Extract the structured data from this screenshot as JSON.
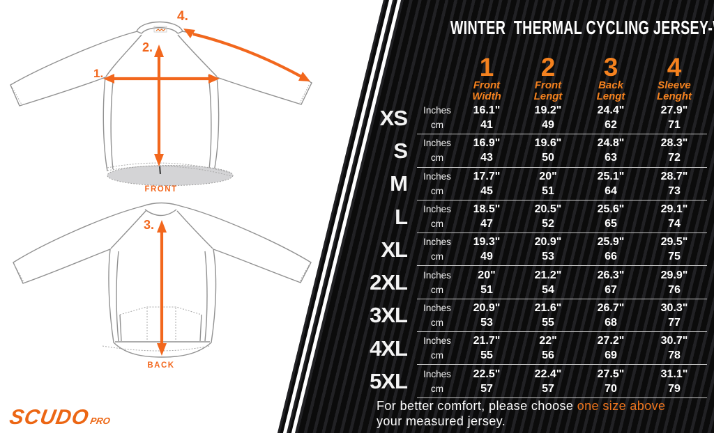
{
  "colors": {
    "accent": "#f2671d",
    "accent2": "#f0761e",
    "header_orange": "#f5821f",
    "logo_orange": "#ec6614",
    "panel_bg": "#0c0c0c",
    "stripe_light": "#212124",
    "separator": "#cdcdcd",
    "hem_gray": "#d4d4d6"
  },
  "diagram": {
    "front_label": "FRONT",
    "back_label": "BACK",
    "markers": {
      "m1": "1.",
      "m2": "2.",
      "m3": "3.",
      "m4": "4."
    },
    "brand": {
      "name": "SCUDO",
      "suffix": "PRO"
    }
  },
  "panel": {
    "title": "WINTER  THERMAL CYCLING JERSEY-WOMAN",
    "columns": [
      {
        "num": "1",
        "label_line1": "Front",
        "label_line2": "Width"
      },
      {
        "num": "2",
        "label_line1": "Front",
        "label_line2": "Lengt"
      },
      {
        "num": "3",
        "label_line1": "Back",
        "label_line2": "Lengt"
      },
      {
        "num": "4",
        "label_line1": "Sleeve",
        "label_line2": "Lenght"
      }
    ],
    "units": [
      "Inches",
      "cm"
    ],
    "rows": [
      {
        "size": "XS",
        "inches": [
          "16.1\"",
          "19.2\"",
          "24.4\"",
          "27.9\""
        ],
        "cm": [
          "41",
          "49",
          "62",
          "71"
        ]
      },
      {
        "size": "S",
        "inches": [
          "16.9\"",
          "19.6\"",
          "24.8\"",
          "28.3\""
        ],
        "cm": [
          "43",
          "50",
          "63",
          "72"
        ]
      },
      {
        "size": "M",
        "inches": [
          "17.7\"",
          "20\"",
          "25.1\"",
          "28.7\""
        ],
        "cm": [
          "45",
          "51",
          "64",
          "73"
        ]
      },
      {
        "size": "L",
        "inches": [
          "18.5\"",
          "20.5\"",
          "25.6\"",
          "29.1\""
        ],
        "cm": [
          "47",
          "52",
          "65",
          "74"
        ]
      },
      {
        "size": "XL",
        "inches": [
          "19.3\"",
          "20.9\"",
          "25.9\"",
          "29.5\""
        ],
        "cm": [
          "49",
          "53",
          "66",
          "75"
        ]
      },
      {
        "size": "2XL",
        "inches": [
          "20\"",
          "21.2\"",
          "26.3\"",
          "29.9\""
        ],
        "cm": [
          "51",
          "54",
          "67",
          "76"
        ]
      },
      {
        "size": "3XL",
        "inches": [
          "20.9\"",
          "21.6\"",
          "26.7\"",
          "30.3\""
        ],
        "cm": [
          "53",
          "55",
          "68",
          "77"
        ]
      },
      {
        "size": "4XL",
        "inches": [
          "21.7\"",
          "22\"",
          "27.2\"",
          "30.7\""
        ],
        "cm": [
          "55",
          "56",
          "69",
          "78"
        ]
      },
      {
        "size": "5XL",
        "inches": [
          "22.5\"",
          "22.4\"",
          "27.5\"",
          "31.1\""
        ],
        "cm": [
          "57",
          "57",
          "70",
          "79"
        ]
      }
    ],
    "note": {
      "pre": "For better comfort, please choose ",
      "highlight": "one size above",
      "post": "your measured jersey."
    }
  }
}
